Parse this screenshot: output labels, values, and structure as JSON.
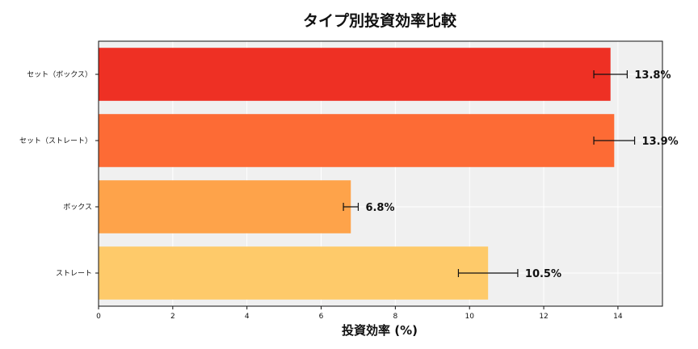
{
  "chart_data": {
    "type": "bar",
    "orientation": "horizontal",
    "title": "タイプ別投資効率比較",
    "xlabel": "投資効率 (%)",
    "ylabel": "",
    "xlim": [
      0,
      15.2
    ],
    "xticks": [
      0,
      2,
      4,
      6,
      8,
      10,
      12,
      14
    ],
    "grid": true,
    "categories": [
      "セット（ボックス）",
      "セット（ストレート）",
      "ボックス",
      "ストレート"
    ],
    "values": [
      13.8,
      13.9,
      6.8,
      10.5
    ],
    "errors": [
      0.45,
      0.55,
      0.2,
      0.8
    ],
    "value_labels": [
      "13.8%",
      "13.9%",
      "6.8%",
      "10.5%"
    ],
    "colors": [
      "#ee3024",
      "#fd6b35",
      "#fea34a",
      "#feca6a"
    ],
    "background_color": "#f0f0f0"
  }
}
